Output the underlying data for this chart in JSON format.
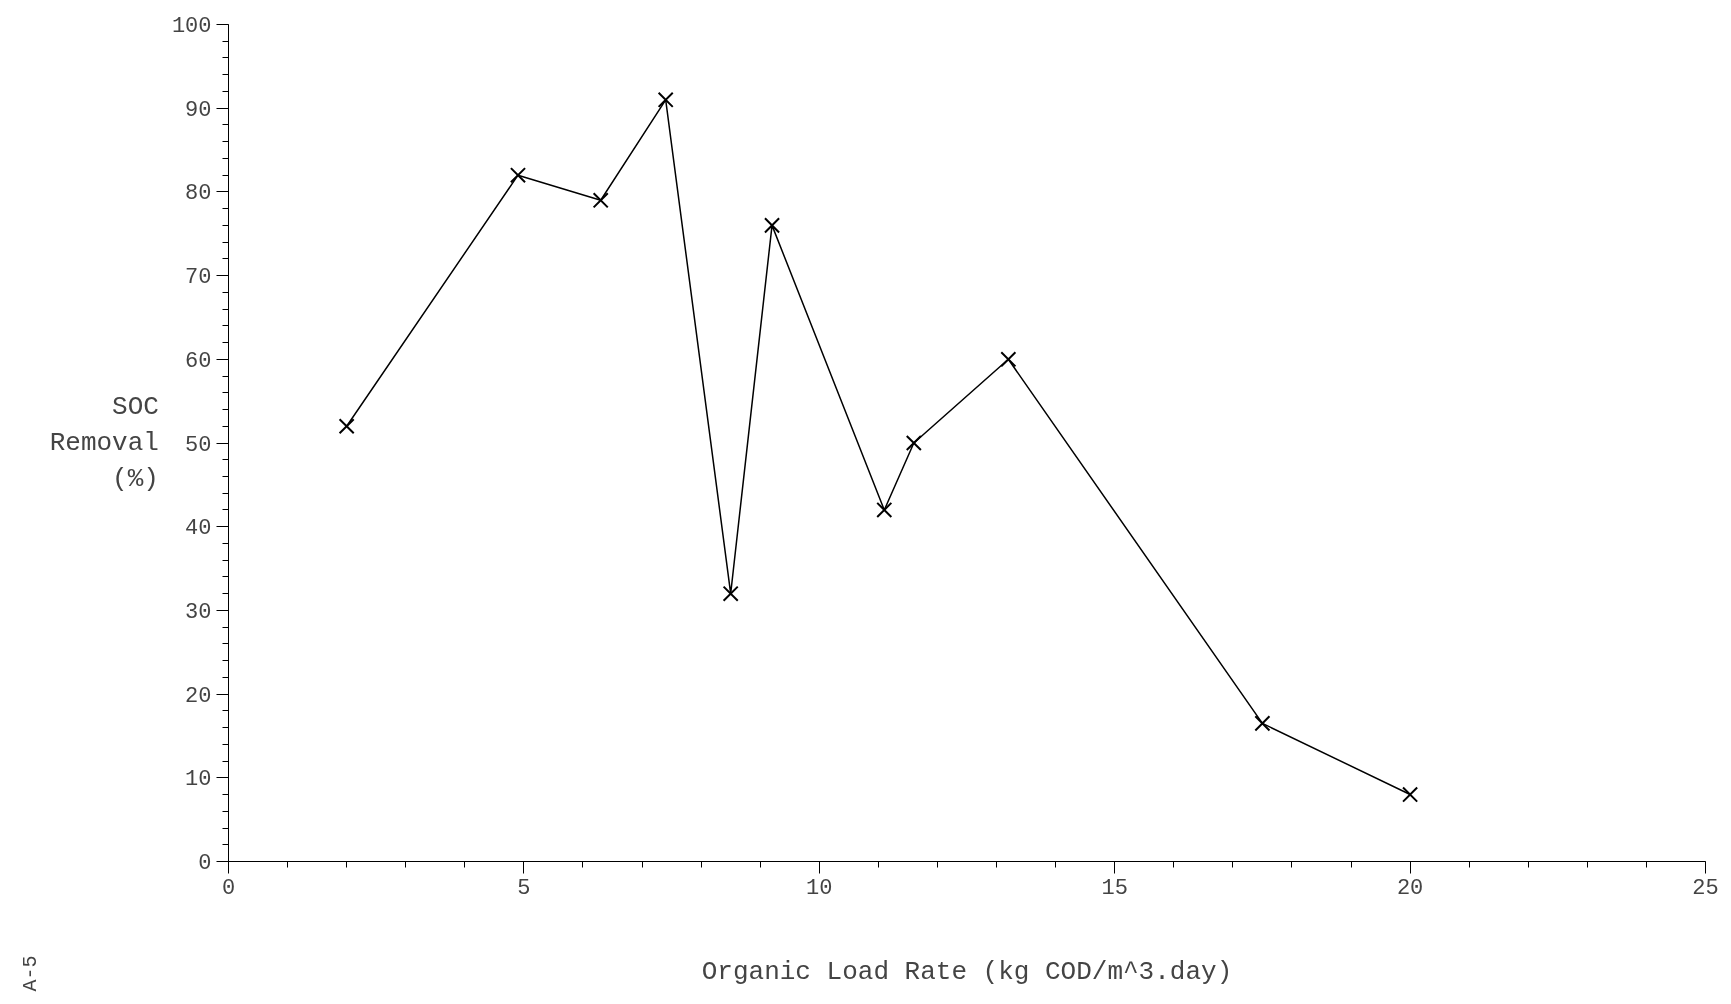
{
  "chart_data": {
    "type": "line",
    "xlabel": "Organic Load Rate (kg COD/m^3.day)",
    "ylabel": "SOC\nRemoval\n(%)",
    "x": [
      2,
      4.9,
      6.3,
      7.4,
      8.5,
      9.2,
      11.1,
      11.6,
      13.2,
      17.5,
      20
    ],
    "values": [
      52,
      82,
      79,
      91,
      32,
      76,
      42,
      50,
      60,
      16.5,
      8
    ],
    "color": "#000000",
    "marker": "cross",
    "line_style": "solid",
    "xlim": [
      0,
      25
    ],
    "ylim": [
      0,
      100
    ],
    "xticks": [
      0,
      5,
      10,
      15,
      20,
      25
    ],
    "yticks": [
      0,
      10,
      20,
      30,
      40,
      50,
      60,
      70,
      80,
      90,
      100
    ],
    "grid": false,
    "annotations": [
      "A-5"
    ]
  }
}
